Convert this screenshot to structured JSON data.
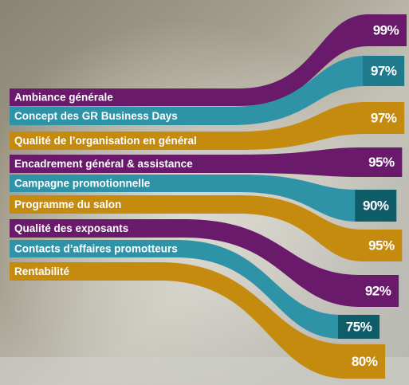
{
  "chart_data": {
    "type": "ribbon",
    "categories": [
      "Ambiance générale",
      "Concept des GR Business Days",
      "Qualité de l’organisation en général",
      "Encadrement général & assistance",
      "Campagne promotionnelle",
      "Programme du salon",
      "Qualité des exposants",
      "Contacts d’affaires promotteurs",
      "Rentabilité"
    ],
    "values": [
      99,
      97,
      97,
      95,
      90,
      95,
      92,
      75,
      80
    ],
    "value_labels": [
      "99%",
      "97%",
      "97%",
      "95%",
      "90%",
      "95%",
      "92%",
      "75%",
      "80%"
    ],
    "colors": [
      "#6a1a6a",
      "#2f93a8",
      "#c58b0f",
      "#6a1a6a",
      "#2f93a8",
      "#c58b0f",
      "#6a1a6a",
      "#2f93a8",
      "#c58b0f"
    ]
  }
}
